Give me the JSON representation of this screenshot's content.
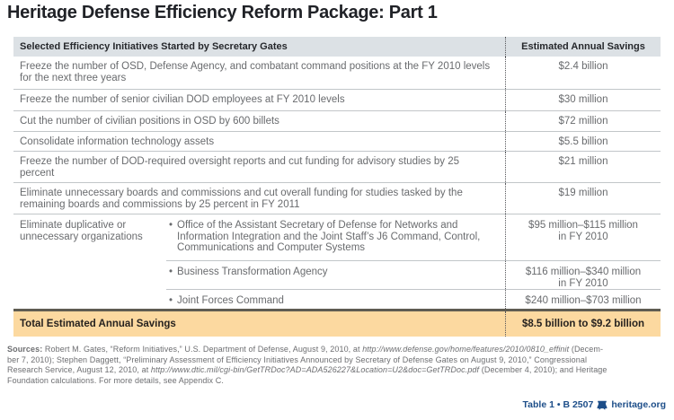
{
  "title": "Heritage Defense Efficiency Reform Package: Part 1",
  "table": {
    "bullet": "•",
    "header": {
      "col1": "Selected Efficiency Initiatives Started by Secretary Gates",
      "col2": "Estimated Annual Savings"
    },
    "rows": [
      {
        "text": "Freeze the number of OSD, Defense Agency, and combatant command positions at the FY 2010 levels for the next three years",
        "value": "$2.4 billion"
      },
      {
        "text": "Freeze the number of senior civilian DOD employees at FY 2010 levels",
        "value": "$30 million"
      },
      {
        "text": "Cut the number of civilian positions in OSD by 600 billets",
        "value": "$72 million"
      },
      {
        "text": "Consolidate information technology assets",
        "value": "$5.5 billion"
      },
      {
        "text": "Freeze the number of DOD-required oversight reports and cut funding for advisory studies by 25 percent",
        "value": "$21 million"
      },
      {
        "text": "Eliminate unnecessary boards and commissions and cut overall funding for studies tasked by the remaining boards and commissions by 25 percent in FY 2011",
        "value": "$19 million"
      }
    ],
    "group_row": {
      "label": "Eliminate duplicative or unnecessary organizations",
      "sub_rows": [
        {
          "text": "Office of the Assistant Secretary of Defense for Networks and Information Integration and the Joint Staff’s J6 Command, Control, Communications and Computer Systems",
          "value": "$95 million–$115 million",
          "value_note": "in FY 2010"
        },
        {
          "text": "Business Transformation Agency",
          "value": "$116 million–$340 million",
          "value_note": "in FY 2010"
        },
        {
          "text": "Joint Forces Command",
          "value": "$240 million–$703 million",
          "value_note": ""
        }
      ]
    },
    "total_row": {
      "label": "Total Estimated Annual Savings",
      "value": "$8.5 billion to $9.2 billion"
    }
  },
  "sources": {
    "lines": [
      [
        {
          "text": "Sources:",
          "style": "bold"
        },
        {
          "text": " Robert M. Gates, “Reform Initiatives,” U.S. Department of Defense, August 9, 2010, at ",
          "style": "normal"
        },
        {
          "text": "http://www.defense.gov/home/features/2010/0810_effinit",
          "style": "italic"
        },
        {
          "text": " (Decem-",
          "style": "normal"
        }
      ],
      [
        {
          "text": "ber 7, 2010); Stephen Daggett, “Preliminary Assessment of Efficiency Initiatives Announced by Secretary of Defense Gates on August 9, 2010,” Congressional",
          "style": "normal"
        }
      ],
      [
        {
          "text": "Research Service, August 12, 2010, at ",
          "style": "normal"
        },
        {
          "text": "http://www.dtic.mil/cgi-bin/GetTRDoc?AD=ADA526227&Location=U2&doc=GetTRDoc.pdf",
          "style": "italic"
        },
        {
          "text": " (December 4, 2010); and Heritage",
          "style": "normal"
        }
      ],
      [
        {
          "text": "Foundation calculations. For more details, see Appendix C.",
          "style": "normal"
        }
      ]
    ]
  },
  "footer": {
    "table_ref": "Table 1 • B 2507",
    "site": "heritage.org"
  },
  "icons": {
    "logo": "heritage-bell-icon"
  },
  "colors": {
    "header_bg": "#dce1e5",
    "total_bg": "#fcd9a0",
    "total_border": "#5f5c52",
    "body_text": "#696b6e",
    "footer_blue": "#1d4e89"
  }
}
